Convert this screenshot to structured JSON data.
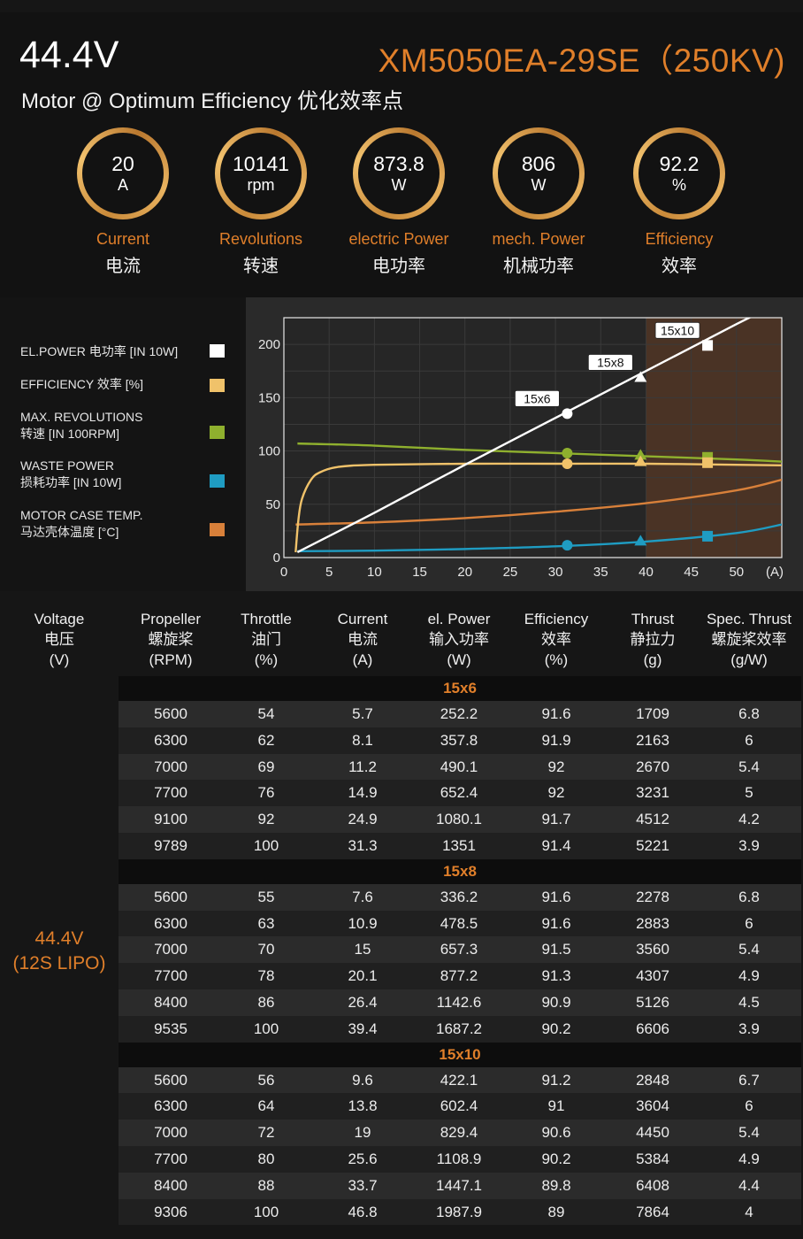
{
  "header": {
    "voltage": "44.4V",
    "model": "XM5050EA-29SE（250KV)",
    "subtitle": "Motor @ Optimum Efficiency  优化效率点"
  },
  "gauges": [
    {
      "value": "20",
      "unit": "A",
      "label_en": "Current",
      "label_cn": "电流"
    },
    {
      "value": "10141",
      "unit": "rpm",
      "label_en": "Revolutions",
      "label_cn": "转速"
    },
    {
      "value": "873.8",
      "unit": "W",
      "label_en": "electric Power",
      "label_cn": "电功率"
    },
    {
      "value": "806",
      "unit": "W",
      "label_en": "mech. Power",
      "label_cn": "机械功率"
    },
    {
      "value": "92.2",
      "unit": "%",
      "label_en": "Efficiency",
      "label_cn": "效率"
    }
  ],
  "legend": [
    {
      "line1": "EL.POWER 电功率 [IN 10W]",
      "line2": "",
      "color": "#ffffff"
    },
    {
      "line1": "EFFICIENCY 效率 [%]",
      "line2": "",
      "color": "#f0c26a"
    },
    {
      "line1": "MAX. REVOLUTIONS",
      "line2": "转速 [IN 100RPM]",
      "color": "#8fb02e"
    },
    {
      "line1": "WASTE POWER",
      "line2": "损耗功率 [IN 10W]",
      "color": "#1f9cc2"
    },
    {
      "line1": "MOTOR CASE TEMP.",
      "line2": "马达壳体温度 [°C]",
      "color": "#d8803a"
    }
  ],
  "chart_data": {
    "type": "line",
    "xlim": [
      0,
      55
    ],
    "ylim": [
      0,
      225
    ],
    "x_ticks": [
      "0",
      "5",
      "10",
      "15",
      "20",
      "25",
      "30",
      "35",
      "40",
      "45",
      "50",
      "(A)"
    ],
    "y_ticks": [
      0,
      50,
      100,
      150,
      200
    ],
    "highlight_x_from": 40,
    "series": [
      {
        "key": "el_power",
        "color": "#ffffff",
        "marker": "none",
        "points": [
          [
            1.5,
            5
          ],
          [
            10,
            42
          ],
          [
            20,
            87
          ],
          [
            30,
            131
          ],
          [
            40,
            175
          ],
          [
            50,
            219
          ],
          [
            55,
            240
          ]
        ]
      },
      {
        "key": "efficiency",
        "color": "#f0c26a",
        "marker": "none",
        "points": [
          [
            1.3,
            5
          ],
          [
            1.6,
            35
          ],
          [
            2,
            55
          ],
          [
            3,
            73
          ],
          [
            4,
            80
          ],
          [
            6,
            85
          ],
          [
            10,
            87
          ],
          [
            20,
            88
          ],
          [
            30,
            88
          ],
          [
            40,
            88
          ],
          [
            50,
            87
          ],
          [
            55,
            86.5
          ]
        ]
      },
      {
        "key": "revolutions",
        "color": "#8fb02e",
        "marker": "none",
        "points": [
          [
            1.5,
            107
          ],
          [
            10,
            105
          ],
          [
            20,
            101
          ],
          [
            30,
            98
          ],
          [
            40,
            95
          ],
          [
            50,
            92
          ],
          [
            55,
            90
          ]
        ]
      },
      {
        "key": "waste_power",
        "color": "#1f9cc2",
        "marker": "none",
        "points": [
          [
            1.5,
            6
          ],
          [
            10,
            6.5
          ],
          [
            20,
            8
          ],
          [
            30,
            10.5
          ],
          [
            40,
            15
          ],
          [
            50,
            23
          ],
          [
            55,
            31
          ]
        ]
      },
      {
        "key": "case_temp",
        "color": "#d8803a",
        "marker": "none",
        "points": [
          [
            1.3,
            31
          ],
          [
            10,
            33
          ],
          [
            20,
            37
          ],
          [
            30,
            43
          ],
          [
            40,
            51
          ],
          [
            50,
            63
          ],
          [
            55,
            73
          ]
        ]
      }
    ],
    "prop_markers": [
      {
        "label": "15x6",
        "x": 31.3,
        "shape": "circle",
        "el_power": 135,
        "efficiency": 88,
        "revolutions": 98,
        "waste_power": 11.5
      },
      {
        "label": "15x8",
        "x": 39.4,
        "shape": "triangle",
        "el_power": 169,
        "efficiency": 90,
        "revolutions": 96,
        "waste_power": 15.5
      },
      {
        "label": "15x10",
        "x": 46.8,
        "shape": "square",
        "el_power": 199,
        "efficiency": 89,
        "revolutions": 94,
        "waste_power": 20
      }
    ]
  },
  "table": {
    "headers": [
      [
        "Voltage",
        "电压",
        "(V)"
      ],
      [
        "Propeller",
        "螺旋桨",
        "(RPM)"
      ],
      [
        "Throttle",
        "油门",
        "(%)"
      ],
      [
        "Current",
        "电流",
        "(A)"
      ],
      [
        "el. Power",
        "输入功率",
        "(W)"
      ],
      [
        "Efficiency",
        "效率",
        "(%)"
      ],
      [
        "Thrust",
        "静拉力",
        "(g)"
      ],
      [
        "Spec. Thrust",
        "螺旋桨效率",
        "(g/W)"
      ]
    ],
    "voltage_label_1": "44.4V",
    "voltage_label_2": "(12S LIPO)",
    "groups": [
      {
        "name": "15x6",
        "rows": [
          [
            "5600",
            "54",
            "5.7",
            "252.2",
            "91.6",
            "1709",
            "6.8"
          ],
          [
            "6300",
            "62",
            "8.1",
            "357.8",
            "91.9",
            "2163",
            "6"
          ],
          [
            "7000",
            "69",
            "11.2",
            "490.1",
            "92",
            "2670",
            "5.4"
          ],
          [
            "7700",
            "76",
            "14.9",
            "652.4",
            "92",
            "3231",
            "5"
          ],
          [
            "9100",
            "92",
            "24.9",
            "1080.1",
            "91.7",
            "4512",
            "4.2"
          ],
          [
            "9789",
            "100",
            "31.3",
            "1351",
            "91.4",
            "5221",
            "3.9"
          ]
        ]
      },
      {
        "name": "15x8",
        "rows": [
          [
            "5600",
            "55",
            "7.6",
            "336.2",
            "91.6",
            "2278",
            "6.8"
          ],
          [
            "6300",
            "63",
            "10.9",
            "478.5",
            "91.6",
            "2883",
            "6"
          ],
          [
            "7000",
            "70",
            "15",
            "657.3",
            "91.5",
            "3560",
            "5.4"
          ],
          [
            "7700",
            "78",
            "20.1",
            "877.2",
            "91.3",
            "4307",
            "4.9"
          ],
          [
            "8400",
            "86",
            "26.4",
            "1142.6",
            "90.9",
            "5126",
            "4.5"
          ],
          [
            "9535",
            "100",
            "39.4",
            "1687.2",
            "90.2",
            "6606",
            "3.9"
          ]
        ]
      },
      {
        "name": "15x10",
        "rows": [
          [
            "5600",
            "56",
            "9.6",
            "422.1",
            "91.2",
            "2848",
            "6.7"
          ],
          [
            "6300",
            "64",
            "13.8",
            "602.4",
            "91",
            "3604",
            "6"
          ],
          [
            "7000",
            "72",
            "19",
            "829.4",
            "90.6",
            "4450",
            "5.4"
          ],
          [
            "7700",
            "80",
            "25.6",
            "1108.9",
            "90.2",
            "5384",
            "4.9"
          ],
          [
            "8400",
            "88",
            "33.7",
            "1447.1",
            "89.8",
            "6408",
            "4.4"
          ],
          [
            "9306",
            "100",
            "46.8",
            "1987.9",
            "89",
            "7864",
            "4"
          ]
        ]
      }
    ]
  }
}
